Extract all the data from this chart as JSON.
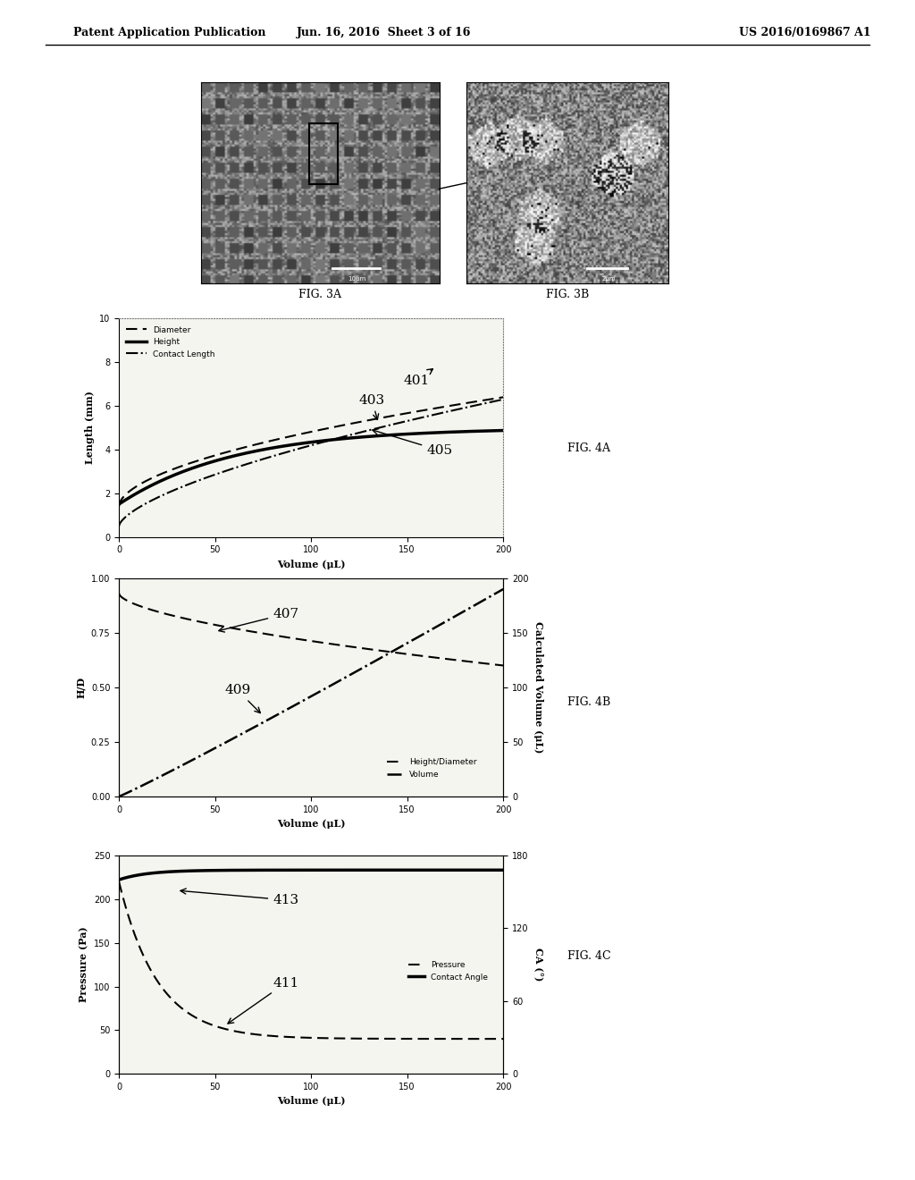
{
  "header_left": "Patent Application Publication",
  "header_mid": "Jun. 16, 2016  Sheet 3 of 16",
  "header_right": "US 2016/0169867 A1",
  "fig3a_label": "FIG. 3A",
  "fig3b_label": "FIG. 3B",
  "fig4a_label": "FIG. 4A",
  "fig4b_label": "FIG. 4B",
  "fig4c_label": "FIG. 4C",
  "fig4a": {
    "xlabel": "Volume (μL)",
    "ylabel": "Length (mm)",
    "ylim": [
      0,
      10
    ],
    "xlim": [
      0,
      200
    ],
    "legend": [
      "Diameter",
      "Height",
      "Contact Length"
    ],
    "annotation_401": "401",
    "annotation_403": "403",
    "annotation_405": "405"
  },
  "fig4b": {
    "xlabel": "Volume (μL)",
    "ylabel_left": "H/D",
    "ylabel_right": "Calculated Volume (μL)",
    "ylim_left": [
      0.0,
      1.0
    ],
    "ylim_right": [
      0,
      200
    ],
    "xlim": [
      0,
      200
    ],
    "legend": [
      "Height/Diameter",
      "Volume"
    ],
    "annotation_407": "407",
    "annotation_409": "409"
  },
  "fig4c": {
    "xlabel": "Volume (μL)",
    "ylabel_left": "Pressure (Pa)",
    "ylabel_right": "CA (°)",
    "ylim_left": [
      0,
      250
    ],
    "ylim_right": [
      0,
      180
    ],
    "xlim": [
      0,
      200
    ],
    "legend": [
      "Pressure",
      "Contact Angle"
    ],
    "annotation_411": "411",
    "annotation_413": "413"
  },
  "bg_color": "#ffffff",
  "plot_bg": "#f5f5f0"
}
